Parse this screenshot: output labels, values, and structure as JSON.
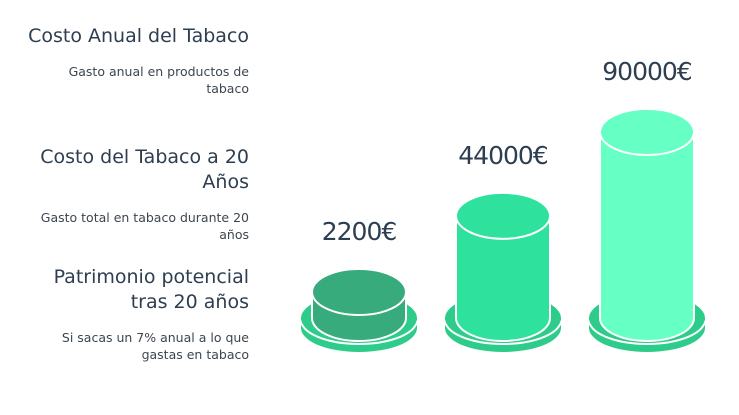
{
  "items": [
    {
      "title": "Costo Anual del Tabaco",
      "desc": "Gasto anual en productos de tabaco"
    },
    {
      "title": "Costo del Tabaco a 20 Años",
      "desc": "Gasto total en tabaco durante 20 años"
    },
    {
      "title": "Patrimonio potencial tras 20 años",
      "desc": "Si sacas un 7% anual a lo que gastas en tabaco"
    }
  ],
  "chart_data": {
    "type": "bar",
    "categories": [
      "Costo Anual del Tabaco",
      "Costo del Tabaco a 20 Años",
      "Patrimonio potencial tras 20 años"
    ],
    "values": [
      2200,
      44000,
      90000
    ],
    "labels": [
      "2200€",
      "44000€",
      "90000€"
    ],
    "colors": [
      "#38ab7c",
      "#2ee29d",
      "#66ffc4"
    ],
    "base_color": "#2ecc8a"
  }
}
